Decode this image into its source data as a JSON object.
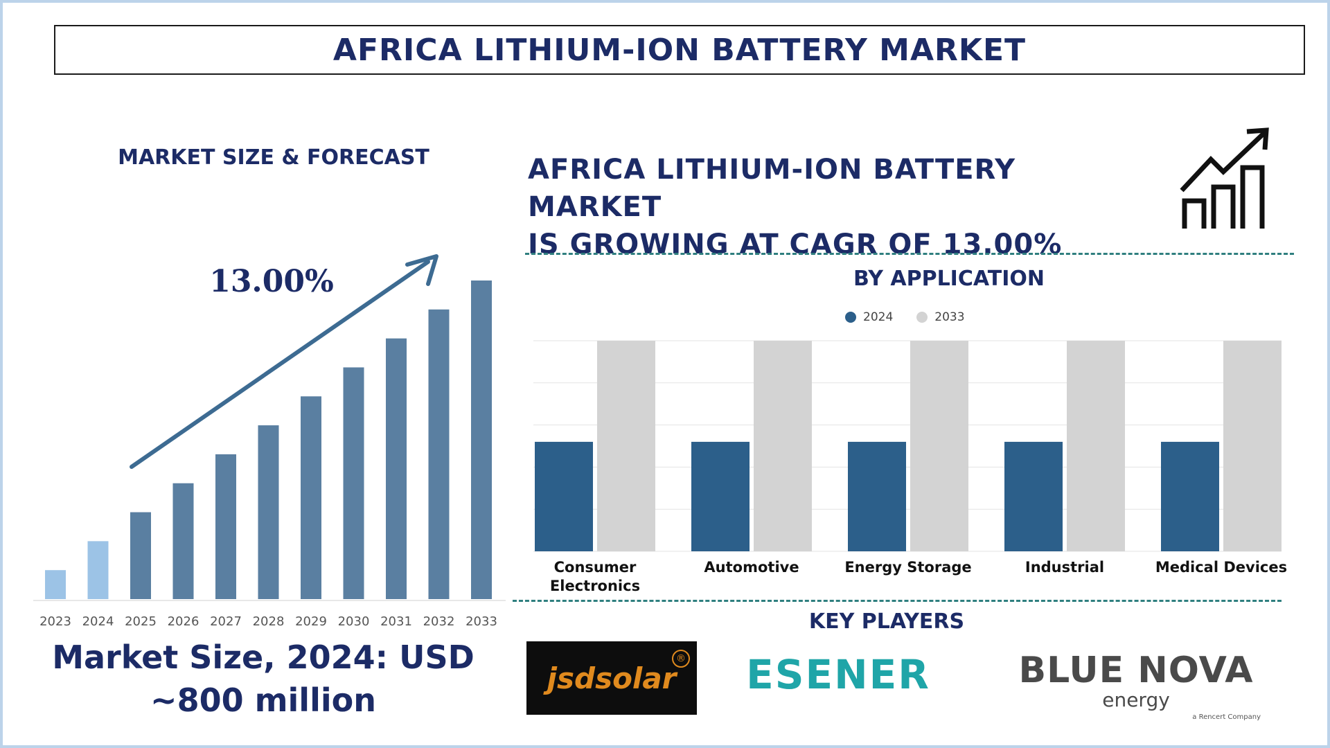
{
  "title": "AFRICA LITHIUM-ION BATTERY MARKET",
  "left_section": {
    "heading": "MARKET SIZE & FORECAST",
    "cagr_label": "13.00%",
    "market_size_line1": "Market Size, 2024: USD",
    "market_size_line2": "~800 million"
  },
  "cagr_statement": {
    "line1": "AFRICA LITHIUM-ION BATTERY MARKET",
    "line2": "IS GROWING AT CAGR OF 13.00%"
  },
  "application_section": {
    "heading": "BY APPLICATION",
    "legend": [
      "2024",
      "2033"
    ]
  },
  "players_section": {
    "heading": "KEY PLAYERS",
    "logos": [
      {
        "text": "jsdsolar",
        "mark": "®"
      },
      {
        "text": "ESENER"
      },
      {
        "text": "BLUE NOVA",
        "subtext": "energy",
        "tagline": "a Rencert Company"
      }
    ]
  },
  "colors": {
    "title": "#1c2b66",
    "bar_light": "#9cc3e6",
    "bar_dark": "#5a7fa1",
    "series_2024": "#2c5f8a",
    "series_2033": "#d3d3d3",
    "arrow": "#3d6b92",
    "dash": "#2f7f7f"
  },
  "chart_data": [
    {
      "type": "bar",
      "title": "MARKET SIZE & FORECAST",
      "categories": [
        "2023",
        "2024",
        "2025",
        "2026",
        "2027",
        "2028",
        "2029",
        "2030",
        "2031",
        "2032",
        "2033"
      ],
      "values": [
        1.0,
        2.0,
        3.0,
        4.0,
        5.0,
        6.0,
        7.0,
        8.0,
        9.0,
        10.0,
        11.0
      ],
      "highlight_categories": [
        "2023",
        "2024"
      ],
      "ylim": [
        0,
        11
      ],
      "annotation": "13.00%",
      "grid": false
    },
    {
      "type": "bar",
      "title": "BY APPLICATION",
      "categories": [
        "Consumer Electronics",
        "Automotive",
        "Energy Storage",
        "Industrial",
        "Medical Devices"
      ],
      "series": [
        {
          "name": "2024",
          "values": [
            2.6,
            2.6,
            2.6,
            2.6,
            2.6
          ]
        },
        {
          "name": "2033",
          "values": [
            5.0,
            5.0,
            5.0,
            5.0,
            5.0
          ]
        }
      ],
      "ylim": [
        0,
        5
      ],
      "grid": true,
      "legend": "top-center"
    }
  ]
}
